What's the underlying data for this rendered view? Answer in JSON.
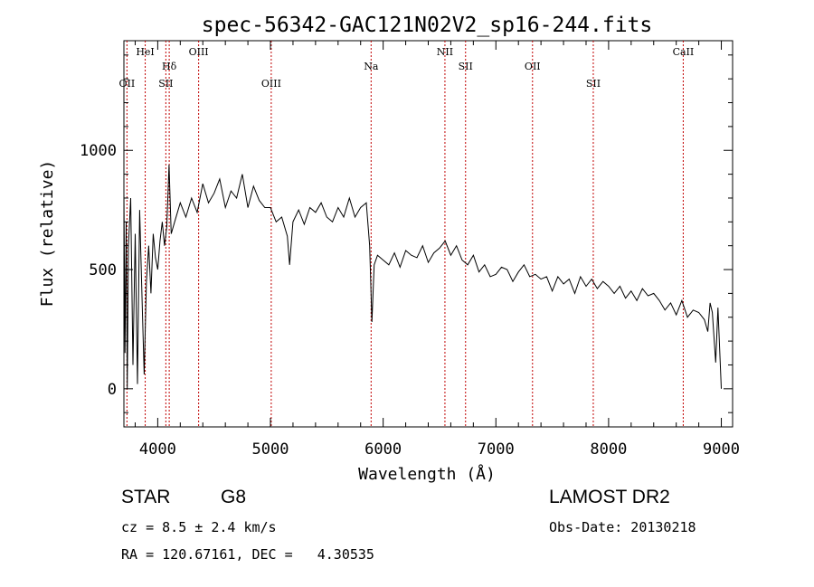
{
  "chart_data": {
    "type": "line",
    "title": "spec-56342-GAC121N02V2_sp16-244.fits",
    "xlabel": "Wavelength (Å)",
    "ylabel": "Flux (relative)",
    "xlim": [
      3700,
      9100
    ],
    "ylim": [
      -160,
      1460
    ],
    "xticks": [
      4000,
      5000,
      6000,
      7000,
      8000,
      9000
    ],
    "yticks": [
      0,
      500,
      1000
    ],
    "grid": false,
    "series_color": "#000000",
    "line_color": "#c00000",
    "lines": [
      {
        "label": "OII",
        "wavelength": 3727,
        "row": 2
      },
      {
        "label": "HeI",
        "wavelength": 3889,
        "row": 0
      },
      {
        "label": "Hδ",
        "wavelength": 4102,
        "row": 1
      },
      {
        "label": "SII",
        "wavelength": 4072,
        "row": 2
      },
      {
        "label": "OIII",
        "wavelength": 4363,
        "row": 0
      },
      {
        "label": "OIII",
        "wavelength": 5007,
        "row": 2
      },
      {
        "label": "Na",
        "wavelength": 5893,
        "row": 1
      },
      {
        "label": "NII",
        "wavelength": 6548,
        "row": 0
      },
      {
        "label": "SII",
        "wavelength": 6731,
        "row": 1
      },
      {
        "label": "OII",
        "wavelength": 7325,
        "row": 1
      },
      {
        "label": "SII",
        "wavelength": 7864,
        "row": 2
      },
      {
        "label": "CaII",
        "wavelength": 8662,
        "row": 0
      }
    ],
    "series": [
      {
        "x": [
          3700,
          3710,
          3720,
          3730,
          3740,
          3760,
          3780,
          3800,
          3820,
          3840,
          3860,
          3880,
          3900,
          3920,
          3940,
          3960,
          3980,
          4000,
          4020,
          4040,
          4060,
          4080,
          4100,
          4120,
          4150,
          4200,
          4250,
          4300,
          4350,
          4400,
          4450,
          4500,
          4550,
          4600,
          4650,
          4700,
          4750,
          4800,
          4850,
          4900,
          4950,
          5000,
          5050,
          5100,
          5150,
          5170,
          5200,
          5250,
          5300,
          5350,
          5400,
          5450,
          5500,
          5550,
          5600,
          5650,
          5700,
          5750,
          5800,
          5850,
          5880,
          5900,
          5920,
          5950,
          6000,
          6050,
          6100,
          6150,
          6200,
          6250,
          6300,
          6350,
          6400,
          6450,
          6500,
          6550,
          6600,
          6650,
          6700,
          6750,
          6800,
          6850,
          6900,
          6950,
          7000,
          7050,
          7100,
          7150,
          7200,
          7250,
          7300,
          7350,
          7400,
          7450,
          7500,
          7550,
          7600,
          7650,
          7700,
          7750,
          7800,
          7850,
          7900,
          7950,
          8000,
          8050,
          8100,
          8150,
          8200,
          8250,
          8300,
          8350,
          8400,
          8450,
          8500,
          8550,
          8600,
          8650,
          8700,
          8750,
          8800,
          8850,
          8880,
          8900,
          8920,
          8950,
          8970,
          9000
        ],
        "y": [
          820,
          150,
          700,
          0,
          600,
          800,
          100,
          650,
          20,
          750,
          400,
          60,
          450,
          600,
          400,
          650,
          550,
          500,
          620,
          700,
          600,
          680,
          940,
          650,
          700,
          780,
          720,
          800,
          740,
          860,
          780,
          820,
          880,
          760,
          830,
          800,
          900,
          760,
          850,
          790,
          760,
          760,
          700,
          720,
          640,
          520,
          700,
          750,
          690,
          760,
          740,
          780,
          720,
          700,
          760,
          720,
          800,
          720,
          760,
          780,
          600,
          280,
          520,
          560,
          540,
          520,
          570,
          510,
          580,
          560,
          550,
          600,
          530,
          570,
          590,
          620,
          560,
          600,
          540,
          520,
          560,
          490,
          520,
          470,
          480,
          510,
          500,
          450,
          490,
          520,
          470,
          480,
          460,
          470,
          410,
          470,
          440,
          460,
          400,
          470,
          430,
          460,
          420,
          450,
          430,
          400,
          430,
          380,
          410,
          370,
          420,
          390,
          400,
          370,
          330,
          360,
          310,
          370,
          300,
          330,
          320,
          290,
          240,
          360,
          320,
          110,
          340,
          0
        ]
      }
    ]
  },
  "footer": {
    "object_class": "STAR",
    "subclass": "G8",
    "survey": "LAMOST DR2",
    "cz": "cz = 8.5 ± 2.4 km/s",
    "obs_date": "Obs-Date: 20130218",
    "coords": "RA = 120.67161, DEC =   4.30535"
  }
}
